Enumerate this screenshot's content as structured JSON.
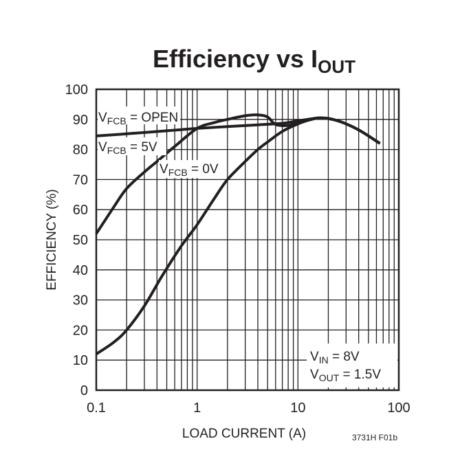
{
  "chart_data": {
    "type": "line",
    "title": "Efficiency vs IOUT",
    "title_main": "Efficiency vs I",
    "title_sub": "OUT",
    "xlabel": "LOAD CURRENT (A)",
    "ylabel": "EFFICIENCY (%)",
    "xscale": "log",
    "xlim": [
      0.1,
      100
    ],
    "ylim": [
      0,
      100
    ],
    "grid": true,
    "xticks": [
      "0.1",
      "1",
      "10",
      "100"
    ],
    "yticks": [
      "0",
      "10",
      "20",
      "30",
      "40",
      "50",
      "60",
      "70",
      "80",
      "90",
      "100"
    ],
    "series": [
      {
        "name": "VFCB = OPEN",
        "label_main": "V",
        "label_sub": "FCB",
        "label_rest": " = OPEN",
        "x": [
          0.1,
          0.2,
          0.5,
          1,
          2,
          4,
          7,
          10,
          17,
          25,
          40,
          65
        ],
        "y": [
          84.5,
          85.2,
          86.2,
          87,
          87.6,
          88.2,
          88.7,
          89.5,
          90.5,
          89.5,
          86.5,
          82
        ]
      },
      {
        "name": "VFCB = 5V",
        "label_main": "V",
        "label_sub": "FCB",
        "label_rest": " = 5V",
        "x": [
          0.1,
          0.15,
          0.2,
          0.3,
          0.4,
          0.6,
          1,
          1.5,
          2,
          3,
          4,
          5,
          6,
          8,
          10,
          13,
          17,
          25,
          40,
          65
        ],
        "y": [
          52,
          61,
          67,
          72.5,
          76,
          81,
          87,
          89,
          90,
          91.2,
          91.5,
          90.8,
          88.3,
          88,
          89,
          90,
          90.5,
          89.5,
          86.5,
          82
        ]
      },
      {
        "name": "VFCB = 0V",
        "label_main": "V",
        "label_sub": "FCB",
        "label_rest": " = 0V",
        "x": [
          0.1,
          0.15,
          0.2,
          0.3,
          0.45,
          0.7,
          1,
          1.5,
          2,
          3,
          4,
          5,
          7,
          10,
          13,
          17,
          25,
          40,
          65
        ],
        "y": [
          12,
          16,
          20,
          28,
          38,
          48,
          55,
          64,
          70,
          76,
          80,
          82.5,
          86,
          88.5,
          89.8,
          90.5,
          89.5,
          86.5,
          82
        ]
      }
    ],
    "annotations": [
      {
        "main": "V",
        "sub": "IN",
        "rest": " = 8V"
      },
      {
        "main": "V",
        "sub": "OUT",
        "rest": " = 1.5V"
      }
    ],
    "figure_id": "3731H F01b"
  }
}
